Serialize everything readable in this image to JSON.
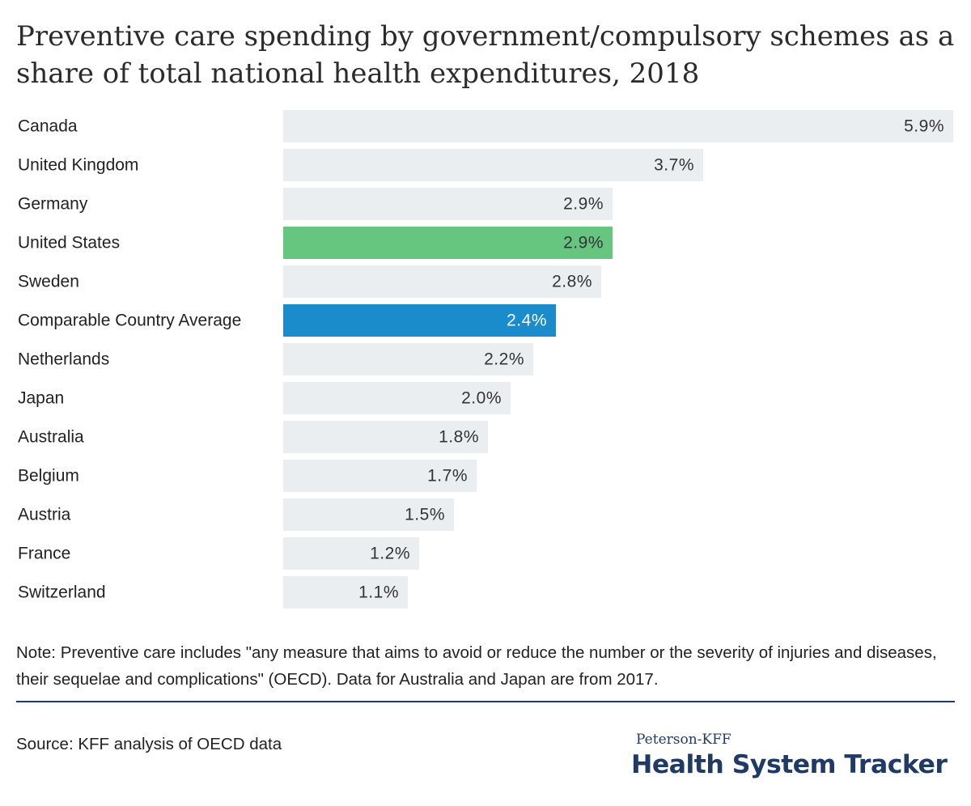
{
  "title": "Preventive care spending by government/compulsory schemes as a share of total national health expenditures, 2018",
  "note": "Note: Preventive care includes \"any measure that aims to avoid or reduce the number or the severity of injuries and diseases, their sequelae and complications\" (OECD). Data for Australia and Japan are from 2017.",
  "source": "Source: KFF analysis of OECD data",
  "logo": {
    "top": "Peterson-KFF",
    "main": "Health System Tracker"
  },
  "colors": {
    "default_bar": "#ebeef1",
    "us_bar": "#66c680",
    "average_bar": "#1a8bcb",
    "label_text": "#222222",
    "value_text_on_light": "#333333",
    "value_text_on_dark": "#ffffff",
    "brand_navy": "#1f3a66"
  },
  "chart_data": {
    "type": "bar",
    "orientation": "horizontal",
    "title": "Preventive care spending by government/compulsory schemes as a share of total national health expenditures, 2018",
    "categories": [
      "Canada",
      "United Kingdom",
      "Germany",
      "United States",
      "Sweden",
      "Comparable Country Average",
      "Netherlands",
      "Japan",
      "Australia",
      "Belgium",
      "Austria",
      "France",
      "Switzerland"
    ],
    "values": [
      5.9,
      3.7,
      2.9,
      2.9,
      2.8,
      2.4,
      2.2,
      2.0,
      1.8,
      1.7,
      1.5,
      1.2,
      1.1
    ],
    "value_labels": [
      "5.9%",
      "3.7%",
      "2.9%",
      "2.9%",
      "2.8%",
      "2.4%",
      "2.2%",
      "2.0%",
      "1.8%",
      "1.7%",
      "1.5%",
      "1.2%",
      "1.1%"
    ],
    "highlight": {
      "United States": "us_bar",
      "Comparable Country Average": "average_bar"
    },
    "xlim": [
      0,
      5.9
    ],
    "grid": false,
    "legend": "none"
  }
}
